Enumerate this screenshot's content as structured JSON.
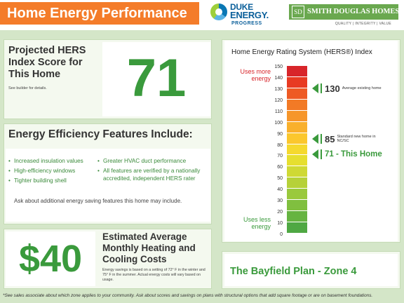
{
  "header": {
    "title": "Home Energy Performance",
    "duke": {
      "line1": "DUKE",
      "line2": "ENERGY.",
      "line3": "PROGRESS"
    },
    "builder": {
      "monogram": "SD",
      "name": "SMITH DOUGLAS HOMES",
      "tagline": "QUALITY | INTEGRITY | VALUE"
    }
  },
  "hers": {
    "label": "Projected HERS Index Score for This Home",
    "note": "See builder for details.",
    "score": "71"
  },
  "features": {
    "title": "Energy Efficiency Features Include:",
    "col1": [
      "Increased insulation values",
      "High-efficiency windows",
      "Tighter building shell"
    ],
    "col2": [
      "Greater HVAC duct performance",
      "All features are verified by a nationally accredited, independent HERS rater"
    ],
    "ask": "Ask about additional energy saving features this home may include."
  },
  "cost": {
    "amount": "$40",
    "title": "Estimated Average Monthly Heating and Cooling Costs",
    "note": "Energy savings is based on a setting of 72° F in the winter and 75° F in the summer. Actual energy costs will vary based on usage."
  },
  "chart_data": {
    "type": "bar",
    "title": "Home Energy Rating System (HERS®) Index",
    "ylim": [
      0,
      150
    ],
    "ticks": [
      150,
      140,
      130,
      120,
      110,
      100,
      90,
      80,
      70,
      60,
      50,
      40,
      30,
      20,
      10,
      0
    ],
    "top_label": "Uses more energy",
    "bottom_label": "Uses less energy",
    "colors": [
      "#d8252a",
      "#e83a22",
      "#ee5a24",
      "#f27a26",
      "#f6962a",
      "#f9b02c",
      "#fbc72d",
      "#f5d92e",
      "#e6df2f",
      "#cfd934",
      "#b6d139",
      "#9ac93d",
      "#80bf3f",
      "#66b441",
      "#4fa843"
    ],
    "markers": [
      {
        "value": 130,
        "label": "130",
        "desc": "Average existing home"
      },
      {
        "value": 85,
        "label": "85",
        "desc": "Standard new home in NC/SC"
      },
      {
        "value": 71,
        "label": "71 - This Home",
        "desc": ""
      }
    ]
  },
  "plan": {
    "name": "The Bayfield Plan - Zone 4"
  },
  "footnote": "*See sales associate about which zone applies to your community.  Ask about scores and savings on plans with structural options that add square footage or are on basement foundations."
}
